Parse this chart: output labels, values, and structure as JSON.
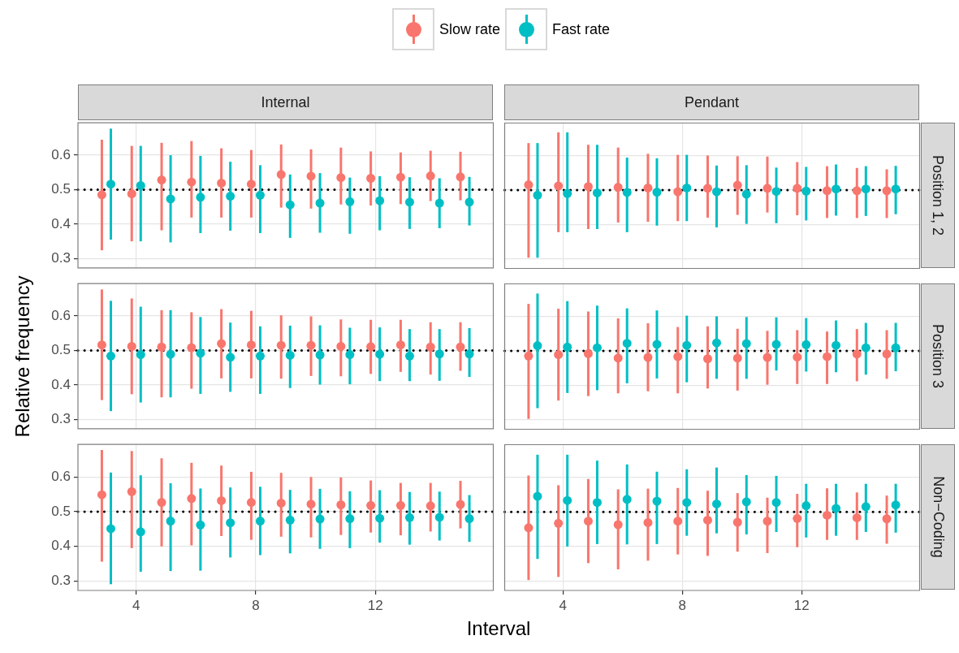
{
  "chart_data": [
    {
      "type": "scatter",
      "title": "Internal",
      "xlim": [
        2.05,
        15.95
      ],
      "ylim": [
        0.273,
        0.694
      ],
      "xticks": [
        4,
        8,
        12
      ],
      "yticks": [
        0.3,
        0.4,
        0.5,
        0.6
      ],
      "tick_labels": "y",
      "grid": true,
      "marker": "circle",
      "legend": "top",
      "ref_lines": [
        {
          "axis": "y",
          "value": 0.5,
          "color": "#000000",
          "line_style": "dotted"
        }
      ],
      "series": [
        {
          "name": "Slow rate",
          "color": "#f8766d",
          "x": [
            2.85,
            3.85,
            4.85,
            5.85,
            6.85,
            7.85,
            8.85,
            9.85,
            10.85,
            11.85,
            12.85,
            13.85,
            14.85
          ],
          "values": [
            0.485,
            0.488,
            0.528,
            0.522,
            0.519,
            0.516,
            0.544,
            0.539,
            0.535,
            0.533,
            0.536,
            0.54,
            0.537
          ],
          "errors": [
            [
              0.324,
              0.645
            ],
            [
              0.35,
              0.627
            ],
            [
              0.382,
              0.636
            ],
            [
              0.419,
              0.641
            ],
            [
              0.419,
              0.62
            ],
            [
              0.419,
              0.615
            ],
            [
              0.448,
              0.631
            ],
            [
              0.445,
              0.617
            ],
            [
              0.457,
              0.622
            ],
            [
              0.454,
              0.611
            ],
            [
              0.458,
              0.608
            ],
            [
              0.467,
              0.613
            ],
            [
              0.469,
              0.61
            ]
          ]
        },
        {
          "name": "Fast rate",
          "color": "#00bfc4",
          "x": [
            3.15,
            4.15,
            5.15,
            6.15,
            7.15,
            8.15,
            9.15,
            10.15,
            11.15,
            12.15,
            13.15,
            14.15,
            15.15
          ],
          "values": [
            0.516,
            0.512,
            0.473,
            0.478,
            0.481,
            0.484,
            0.456,
            0.461,
            0.465,
            0.468,
            0.464,
            0.461,
            0.464
          ],
          "errors": [
            [
              0.355,
              0.677
            ],
            [
              0.35,
              0.627
            ],
            [
              0.347,
              0.6
            ],
            [
              0.374,
              0.598
            ],
            [
              0.381,
              0.581
            ],
            [
              0.374,
              0.571
            ],
            [
              0.36,
              0.544
            ],
            [
              0.375,
              0.548
            ],
            [
              0.372,
              0.535
            ],
            [
              0.382,
              0.539
            ],
            [
              0.386,
              0.536
            ],
            [
              0.388,
              0.533
            ],
            [
              0.396,
              0.537
            ]
          ]
        }
      ]
    },
    {
      "type": "scatter",
      "title": "Pendant",
      "annotations": [
        "Position 1, 2"
      ],
      "xlim": [
        2.05,
        15.95
      ],
      "ylim": [
        0.273,
        0.694
      ],
      "xticks": [
        4,
        8,
        12
      ],
      "yticks": [
        0.3,
        0.4,
        0.5,
        0.6
      ],
      "tick_labels": false,
      "grid": true,
      "marker": "circle",
      "ref_lines": [
        {
          "axis": "y",
          "value": 0.5,
          "color": "#000000",
          "line_style": "dotted"
        }
      ],
      "series": [
        {
          "color": "#f8766d",
          "x": [
            2.85,
            3.85,
            4.85,
            5.85,
            6.85,
            7.85,
            8.85,
            9.85,
            10.85,
            11.85,
            12.85,
            13.85,
            14.85
          ],
          "values": [
            0.515,
            0.512,
            0.51,
            0.508,
            0.506,
            0.495,
            0.505,
            0.514,
            0.505,
            0.505,
            0.498,
            0.498,
            0.498
          ],
          "errors": [
            [
              0.304,
              0.636
            ],
            [
              0.378,
              0.667
            ],
            [
              0.387,
              0.631
            ],
            [
              0.406,
              0.623
            ],
            [
              0.408,
              0.605
            ],
            [
              0.41,
              0.602
            ],
            [
              0.42,
              0.6
            ],
            [
              0.428,
              0.598
            ],
            [
              0.435,
              0.597
            ],
            [
              0.427,
              0.581
            ],
            [
              0.419,
              0.569
            ],
            [
              0.419,
              0.564
            ],
            [
              0.419,
              0.56
            ]
          ]
        },
        {
          "color": "#00bfc4",
          "x": [
            3.15,
            4.15,
            5.15,
            6.15,
            7.15,
            8.15,
            9.15,
            10.15,
            11.15,
            12.15,
            13.15,
            14.15,
            15.15
          ],
          "values": [
            0.485,
            0.49,
            0.492,
            0.493,
            0.494,
            0.506,
            0.495,
            0.488,
            0.496,
            0.497,
            0.503,
            0.503,
            0.503
          ],
          "errors": [
            [
              0.304,
              0.636
            ],
            [
              0.378,
              0.667
            ],
            [
              0.387,
              0.631
            ],
            [
              0.378,
              0.594
            ],
            [
              0.397,
              0.592
            ],
            [
              0.41,
              0.602
            ],
            [
              0.392,
              0.571
            ],
            [
              0.402,
              0.572
            ],
            [
              0.404,
              0.565
            ],
            [
              0.412,
              0.567
            ],
            [
              0.426,
              0.574
            ],
            [
              0.425,
              0.569
            ],
            [
              0.43,
              0.57
            ]
          ]
        }
      ]
    },
    {
      "type": "scatter",
      "ylabel": "Relative frequency",
      "xlim": [
        2.05,
        15.95
      ],
      "ylim": [
        0.273,
        0.694
      ],
      "xticks": [
        4,
        8,
        12
      ],
      "yticks": [
        0.3,
        0.4,
        0.5,
        0.6
      ],
      "tick_labels": "y",
      "grid": true,
      "marker": "circle",
      "ref_lines": [
        {
          "axis": "y",
          "value": 0.5,
          "color": "#000000",
          "line_style": "dotted"
        }
      ],
      "series": [
        {
          "color": "#f8766d",
          "x": [
            2.85,
            3.85,
            4.85,
            5.85,
            6.85,
            7.85,
            8.85,
            9.85,
            10.85,
            11.85,
            12.85,
            13.85,
            14.85
          ],
          "values": [
            0.516,
            0.512,
            0.51,
            0.508,
            0.52,
            0.516,
            0.515,
            0.515,
            0.512,
            0.511,
            0.516,
            0.51,
            0.51
          ],
          "errors": [
            [
              0.356,
              0.677
            ],
            [
              0.373,
              0.651
            ],
            [
              0.364,
              0.617
            ],
            [
              0.389,
              0.611
            ],
            [
              0.419,
              0.62
            ],
            [
              0.419,
              0.615
            ],
            [
              0.418,
              0.602
            ],
            [
              0.426,
              0.599
            ],
            [
              0.425,
              0.59
            ],
            [
              0.432,
              0.589
            ],
            [
              0.438,
              0.589
            ],
            [
              0.43,
              0.582
            ],
            [
              0.441,
              0.582
            ]
          ]
        },
        {
          "color": "#00bfc4",
          "x": [
            3.15,
            4.15,
            5.15,
            6.15,
            7.15,
            8.15,
            9.15,
            10.15,
            11.15,
            12.15,
            13.15,
            14.15,
            15.15
          ],
          "values": [
            0.484,
            0.488,
            0.489,
            0.492,
            0.48,
            0.484,
            0.486,
            0.487,
            0.488,
            0.489,
            0.484,
            0.49,
            0.49
          ],
          "errors": [
            [
              0.324,
              0.644
            ],
            [
              0.349,
              0.627
            ],
            [
              0.364,
              0.617
            ],
            [
              0.374,
              0.597
            ],
            [
              0.38,
              0.581
            ],
            [
              0.374,
              0.57
            ],
            [
              0.391,
              0.572
            ],
            [
              0.401,
              0.573
            ],
            [
              0.402,
              0.566
            ],
            [
              0.411,
              0.567
            ],
            [
              0.411,
              0.562
            ],
            [
              0.412,
              0.562
            ],
            [
              0.423,
              0.565
            ]
          ]
        }
      ]
    },
    {
      "type": "scatter",
      "annotations": [
        "Position 3"
      ],
      "xlim": [
        2.05,
        15.95
      ],
      "ylim": [
        0.273,
        0.694
      ],
      "xticks": [
        4,
        8,
        12
      ],
      "yticks": [
        0.3,
        0.4,
        0.5,
        0.6
      ],
      "tick_labels": false,
      "grid": true,
      "marker": "circle",
      "ref_lines": [
        {
          "axis": "y",
          "value": 0.5,
          "color": "#000000",
          "line_style": "dotted"
        }
      ],
      "series": [
        {
          "color": "#f8766d",
          "x": [
            2.85,
            3.85,
            4.85,
            5.85,
            6.85,
            7.85,
            8.85,
            9.85,
            10.85,
            11.85,
            12.85,
            13.85,
            14.85
          ],
          "values": [
            0.485,
            0.489,
            0.492,
            0.479,
            0.481,
            0.483,
            0.477,
            0.479,
            0.481,
            0.482,
            0.483,
            0.491,
            0.491
          ],
          "errors": [
            [
              0.303,
              0.636
            ],
            [
              0.356,
              0.622
            ],
            [
              0.369,
              0.614
            ],
            [
              0.377,
              0.594
            ],
            [
              0.383,
              0.58
            ],
            [
              0.377,
              0.569
            ],
            [
              0.391,
              0.571
            ],
            [
              0.385,
              0.564
            ],
            [
              0.402,
              0.558
            ],
            [
              0.404,
              0.56
            ],
            [
              0.404,
              0.556
            ],
            [
              0.412,
              0.563
            ],
            [
              0.419,
              0.56
            ]
          ]
        },
        {
          "color": "#00bfc4",
          "x": [
            3.15,
            4.15,
            5.15,
            6.15,
            7.15,
            8.15,
            9.15,
            10.15,
            11.15,
            12.15,
            13.15,
            14.15,
            15.15
          ],
          "values": [
            0.515,
            0.511,
            0.509,
            0.522,
            0.519,
            0.516,
            0.523,
            0.521,
            0.519,
            0.518,
            0.516,
            0.509,
            0.509
          ],
          "errors": [
            [
              0.334,
              0.666
            ],
            [
              0.378,
              0.644
            ],
            [
              0.386,
              0.631
            ],
            [
              0.406,
              0.623
            ],
            [
              0.42,
              0.617
            ],
            [
              0.409,
              0.602
            ],
            [
              0.419,
              0.6
            ],
            [
              0.419,
              0.598
            ],
            [
              0.443,
              0.597
            ],
            [
              0.44,
              0.595
            ],
            [
              0.438,
              0.588
            ],
            [
              0.431,
              0.581
            ],
            [
              0.441,
              0.581
            ]
          ]
        }
      ]
    },
    {
      "type": "scatter",
      "xlabel": "Interval",
      "xlim": [
        2.05,
        15.95
      ],
      "ylim": [
        0.273,
        0.694
      ],
      "xticks": [
        4,
        8,
        12
      ],
      "yticks": [
        0.3,
        0.4,
        0.5,
        0.6
      ],
      "grid": true,
      "marker": "circle",
      "ref_lines": [
        {
          "axis": "y",
          "value": 0.5,
          "color": "#000000",
          "line_style": "dotted"
        }
      ],
      "series": [
        {
          "color": "#f8766d",
          "x": [
            2.85,
            3.85,
            4.85,
            5.85,
            6.85,
            7.85,
            8.85,
            9.85,
            10.85,
            11.85,
            12.85,
            13.85,
            14.85
          ],
          "values": [
            0.549,
            0.558,
            0.527,
            0.538,
            0.532,
            0.527,
            0.525,
            0.522,
            0.52,
            0.518,
            0.518,
            0.517,
            0.521
          ],
          "errors": [
            [
              0.356,
              0.678
            ],
            [
              0.395,
              0.675
            ],
            [
              0.4,
              0.654
            ],
            [
              0.403,
              0.641
            ],
            [
              0.43,
              0.633
            ],
            [
              0.419,
              0.615
            ],
            [
              0.428,
              0.612
            ],
            [
              0.426,
              0.6
            ],
            [
              0.433,
              0.599
            ],
            [
              0.44,
              0.59
            ],
            [
              0.432,
              0.583
            ],
            [
              0.443,
              0.583
            ],
            [
              0.452,
              0.589
            ]
          ]
        },
        {
          "color": "#00bfc4",
          "x": [
            3.15,
            4.15,
            5.15,
            6.15,
            7.15,
            8.15,
            9.15,
            10.15,
            11.15,
            12.15,
            13.15,
            14.15,
            15.15
          ],
          "values": [
            0.451,
            0.442,
            0.473,
            0.462,
            0.468,
            0.473,
            0.476,
            0.479,
            0.48,
            0.481,
            0.483,
            0.484,
            0.48
          ],
          "errors": [
            [
              0.291,
              0.613
            ],
            [
              0.327,
              0.605
            ],
            [
              0.329,
              0.582
            ],
            [
              0.33,
              0.567
            ],
            [
              0.368,
              0.57
            ],
            [
              0.375,
              0.572
            ],
            [
              0.38,
              0.563
            ],
            [
              0.393,
              0.566
            ],
            [
              0.395,
              0.559
            ],
            [
              0.411,
              0.562
            ],
            [
              0.405,
              0.557
            ],
            [
              0.417,
              0.558
            ],
            [
              0.413,
              0.548
            ]
          ]
        }
      ]
    },
    {
      "type": "scatter",
      "annotations": [
        "Non−Coding"
      ],
      "xlim": [
        2.05,
        15.95
      ],
      "ylim": [
        0.273,
        0.694
      ],
      "xticks": [
        4,
        8,
        12
      ],
      "yticks": [
        0.3,
        0.4,
        0.5,
        0.6
      ],
      "tick_labels": "x",
      "grid": true,
      "marker": "circle",
      "ref_lines": [
        {
          "axis": "y",
          "value": 0.5,
          "color": "#000000",
          "line_style": "dotted"
        }
      ],
      "series": [
        {
          "color": "#f8766d",
          "x": [
            2.85,
            3.85,
            4.85,
            5.85,
            6.85,
            7.85,
            8.85,
            9.85,
            10.85,
            11.85,
            12.85,
            13.85,
            14.85
          ],
          "values": [
            0.454,
            0.467,
            0.473,
            0.463,
            0.469,
            0.473,
            0.476,
            0.47,
            0.473,
            0.481,
            0.49,
            0.483,
            0.48
          ],
          "errors": [
            [
              0.303,
              0.605
            ],
            [
              0.312,
              0.577
            ],
            [
              0.352,
              0.595
            ],
            [
              0.334,
              0.565
            ],
            [
              0.359,
              0.567
            ],
            [
              0.377,
              0.569
            ],
            [
              0.373,
              0.561
            ],
            [
              0.385,
              0.554
            ],
            [
              0.381,
              0.541
            ],
            [
              0.398,
              0.552
            ],
            [
              0.419,
              0.568
            ],
            [
              0.419,
              0.556
            ],
            [
              0.408,
              0.547
            ]
          ]
        },
        {
          "color": "#00bfc4",
          "x": [
            3.15,
            4.15,
            5.15,
            6.15,
            7.15,
            8.15,
            9.15,
            10.15,
            11.15,
            12.15,
            13.15,
            14.15,
            15.15
          ],
          "values": [
            0.545,
            0.533,
            0.527,
            0.536,
            0.531,
            0.527,
            0.523,
            0.529,
            0.527,
            0.518,
            0.51,
            0.515,
            0.52
          ],
          "errors": [
            [
              0.364,
              0.665
            ],
            [
              0.4,
              0.665
            ],
            [
              0.407,
              0.648
            ],
            [
              0.406,
              0.637
            ],
            [
              0.407,
              0.616
            ],
            [
              0.431,
              0.623
            ],
            [
              0.438,
              0.628
            ],
            [
              0.435,
              0.606
            ],
            [
              0.442,
              0.604
            ],
            [
              0.426,
              0.581
            ],
            [
              0.431,
              0.581
            ],
            [
              0.442,
              0.581
            ],
            [
              0.44,
              0.581
            ]
          ]
        }
      ]
    }
  ]
}
